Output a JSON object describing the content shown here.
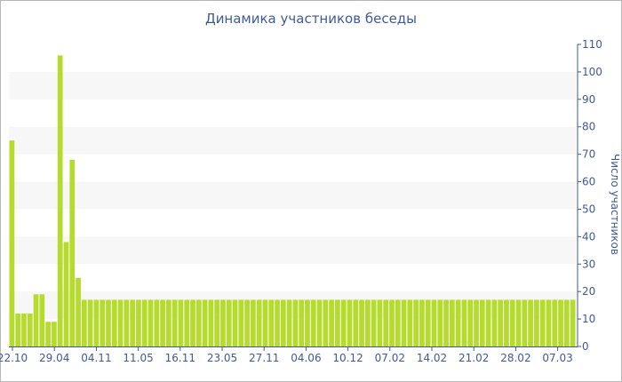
{
  "chart_data": {
    "type": "bar",
    "title": "Динамика участников беседы",
    "xlabel": "",
    "ylabel": "Число участников",
    "ylim": [
      0,
      110
    ],
    "yticks": [
      0,
      10,
      20,
      30,
      40,
      50,
      60,
      70,
      80,
      90,
      100,
      110
    ],
    "x_tick_labels": [
      "22.10",
      "29.04",
      "04.11",
      "11.05",
      "16.11",
      "23.05",
      "27.11",
      "04.06",
      "10.12",
      "07.02",
      "14.02",
      "21.02",
      "28.02",
      "07.03"
    ],
    "values": [
      75,
      12,
      12,
      12,
      19,
      19,
      9,
      9,
      106,
      38,
      68,
      25,
      17,
      17,
      17,
      17,
      17,
      17,
      17,
      17,
      17,
      17,
      17,
      17,
      17,
      17,
      17,
      17,
      17,
      17,
      17,
      17,
      17,
      17,
      17,
      17,
      17,
      17,
      17,
      17,
      17,
      17,
      17,
      17,
      17,
      17,
      17,
      17,
      17,
      17,
      17,
      17,
      17,
      17,
      17,
      17,
      17,
      17,
      17,
      17,
      17,
      17,
      17,
      17,
      17,
      17,
      17,
      17,
      17,
      17,
      17,
      17,
      17,
      17,
      17,
      17,
      17,
      17,
      17,
      17,
      17,
      17,
      17,
      17,
      17,
      17,
      17,
      17,
      17,
      17,
      17,
      17,
      17,
      17
    ],
    "grid": "alternating horizontal bands",
    "legend": "none",
    "colors": {
      "bar": "#b5db2c",
      "band": "#f7f7f7",
      "text": "#3e5a9a"
    }
  }
}
